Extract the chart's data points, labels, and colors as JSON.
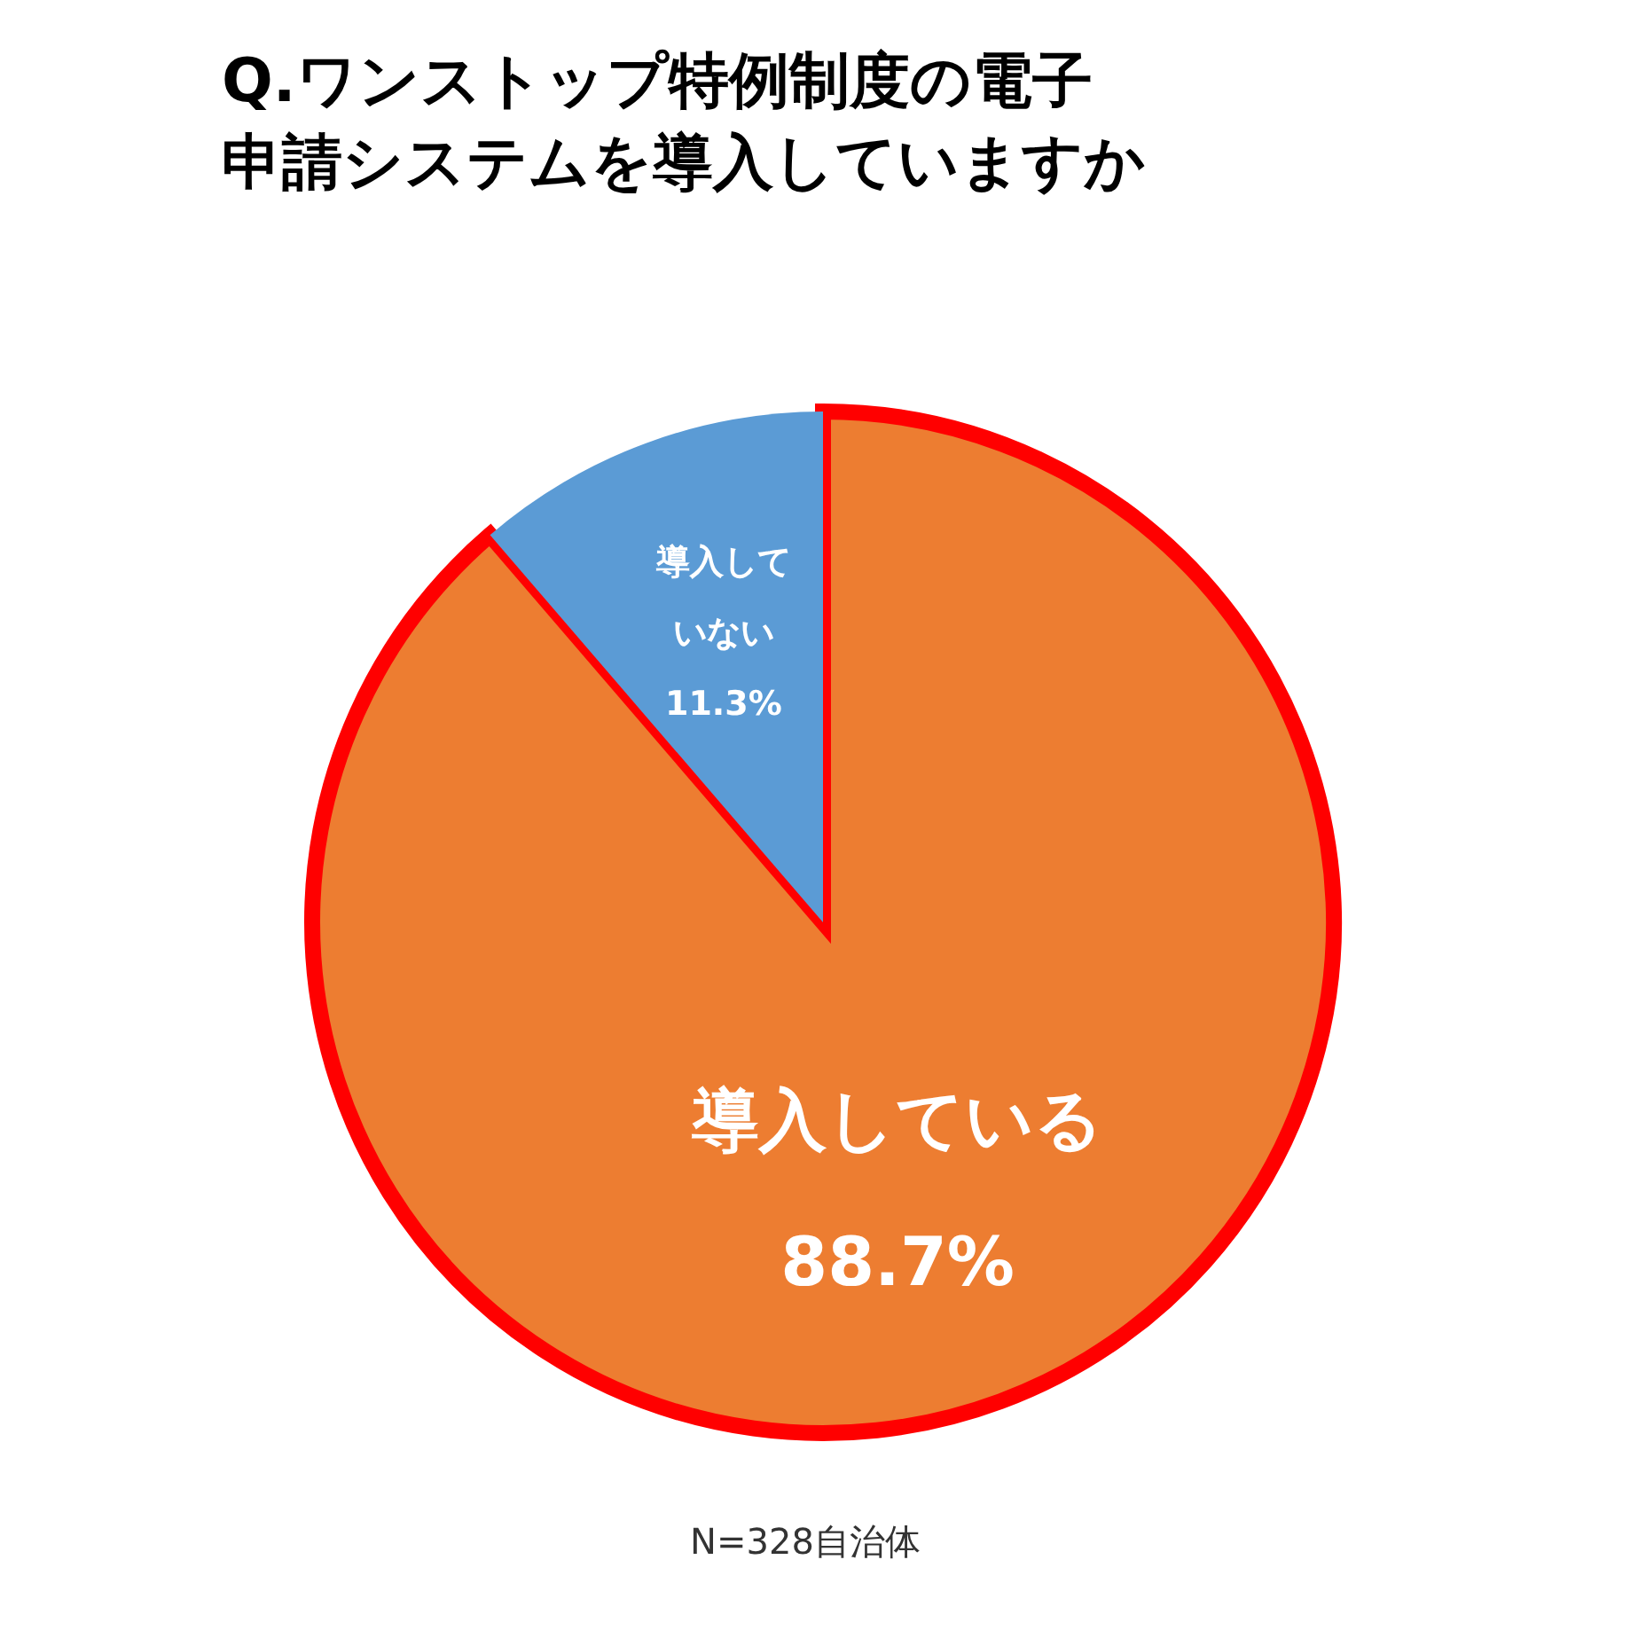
{
  "chart_data": {
    "type": "pie",
    "title": "Q.ワンストップ特例制度の電子申請システムを導入していますか",
    "categories": [
      "導入している",
      "導入していない"
    ],
    "values": [
      88.7,
      11.3
    ],
    "colors": [
      "#ed7d31",
      "#5b9bd5"
    ],
    "value_labels": [
      "88.7%",
      "11.3%"
    ],
    "legend": false,
    "annotations": [
      "N=328自治体"
    ]
  }
}
